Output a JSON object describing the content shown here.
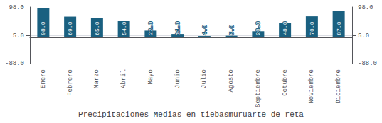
{
  "chart_data": {
    "type": "bar",
    "title": "Precipitaciones Medias en tiebasmuruarte de reta",
    "categories": [
      "Enero",
      "Febrero",
      "Marzo",
      "Abril",
      "Mayo",
      "Junio",
      "Julio",
      "Agosto",
      "Septiembre",
      "Octubre",
      "Noviembre",
      "Diciembre"
    ],
    "values": [
      98.0,
      69.0,
      65.0,
      54.0,
      22.0,
      11.0,
      4.0,
      5.0,
      20.0,
      48.0,
      70.0,
      87.0
    ],
    "value_labels": [
      "98.0",
      "69.0",
      "65.0",
      "54.0",
      "22.0",
      "11.0",
      "4.0",
      "5.0",
      "20.0",
      "48.0",
      "70.0",
      "87.0"
    ],
    "color": "#1a6080",
    "ylim": [
      -88,
      101
    ],
    "yticks": [
      {
        "value": -88,
        "label": "-88.0"
      },
      {
        "value": 5,
        "label": "5.0"
      },
      {
        "value": 98,
        "label": "98.0"
      }
    ],
    "y2lim": [
      -88,
      101
    ],
    "y2ticks": [
      {
        "value": -88,
        "label": "-88.0"
      },
      {
        "value": 5,
        "label": "5.0"
      },
      {
        "value": 98,
        "label": "98.0"
      }
    ],
    "grid": true,
    "data_labels": true
  }
}
